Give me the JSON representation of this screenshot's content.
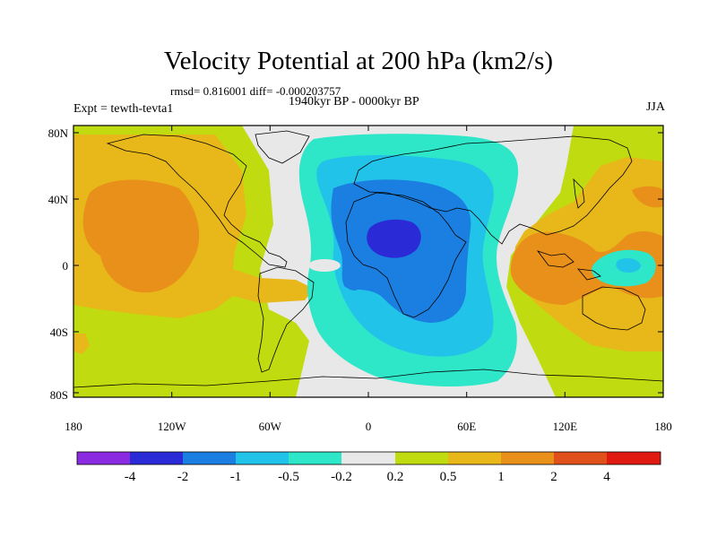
{
  "title": "Velocity Potential at 200 hPa (km2/s)",
  "stats": "rmsd= 0.816001 diff= -0.000203757",
  "period": "1940kyr BP - 0000kyr BP",
  "expt": "Expt = tewth-tevta1",
  "season": "JJA",
  "lat_ticks": [
    "80N",
    "40N",
    "0",
    "40S",
    "80S"
  ],
  "lon_ticks": [
    "180",
    "120W",
    "60W",
    "0",
    "60E",
    "120E",
    "180"
  ],
  "colorbar": {
    "colors": [
      "#8a2be2",
      "#2a2ad6",
      "#1a7fe0",
      "#22c3e8",
      "#2ee6c8",
      "#e8e8e8",
      "#c0dc10",
      "#e8b81a",
      "#e8901a",
      "#e0501a",
      "#e01a10"
    ],
    "labels": [
      "-4",
      "-2",
      "-1",
      "-0.5",
      "-0.2",
      "0.2",
      "0.5",
      "1",
      "2",
      "4"
    ]
  },
  "field_colors": {
    "neutral": "#e8e8e8",
    "neg_02": "#2ee6c8",
    "neg_05": "#22c3e8",
    "neg_1": "#1a7fe0",
    "neg_2": "#2a2ad6",
    "pos_02": "#c0dc10",
    "pos_05": "#e8b81a",
    "pos_1": "#e8901a"
  }
}
